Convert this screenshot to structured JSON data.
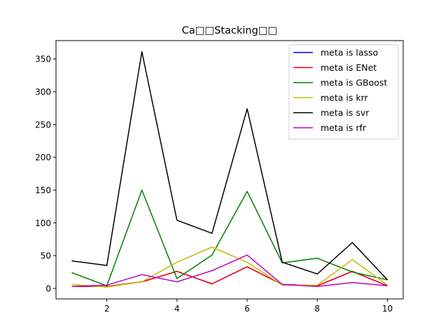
{
  "chart_data": {
    "type": "line",
    "title": "Ca□□Stacking□□",
    "xlabel": "",
    "ylabel": "",
    "x": [
      1,
      2,
      3,
      4,
      5,
      6,
      7,
      8,
      9,
      10
    ],
    "xlim": [
      0.55,
      10.45
    ],
    "ylim": [
      -16,
      378
    ],
    "xticks": [
      2,
      4,
      6,
      8,
      10
    ],
    "yticks": [
      0,
      50,
      100,
      150,
      200,
      250,
      300,
      350
    ],
    "legend_position": "top-right",
    "grid": false,
    "series": [
      {
        "name": "meta is lasso",
        "color": "#0000ff",
        "values": [
          3,
          3,
          10,
          26,
          7,
          33,
          6,
          4,
          26,
          4
        ]
      },
      {
        "name": "meta is ENet",
        "color": "#ff0000",
        "values": [
          3,
          3,
          10,
          26,
          7,
          33,
          6,
          4,
          26,
          4
        ]
      },
      {
        "name": "meta is GBoost",
        "color": "#008000",
        "values": [
          24,
          4,
          150,
          15,
          51,
          148,
          39,
          46,
          25,
          13
        ]
      },
      {
        "name": "meta is krr",
        "color": "#bfbf00",
        "values": [
          6,
          2,
          10,
          40,
          63,
          40,
          5,
          5,
          44,
          5
        ]
      },
      {
        "name": "meta is svr",
        "color": "#000000",
        "values": [
          42,
          35,
          361,
          104,
          84,
          274,
          40,
          22,
          70,
          13
        ]
      },
      {
        "name": "meta is rfr",
        "color": "#bf00bf",
        "values": [
          3,
          5,
          21,
          10,
          27,
          51,
          6,
          3,
          9,
          4
        ]
      }
    ]
  }
}
